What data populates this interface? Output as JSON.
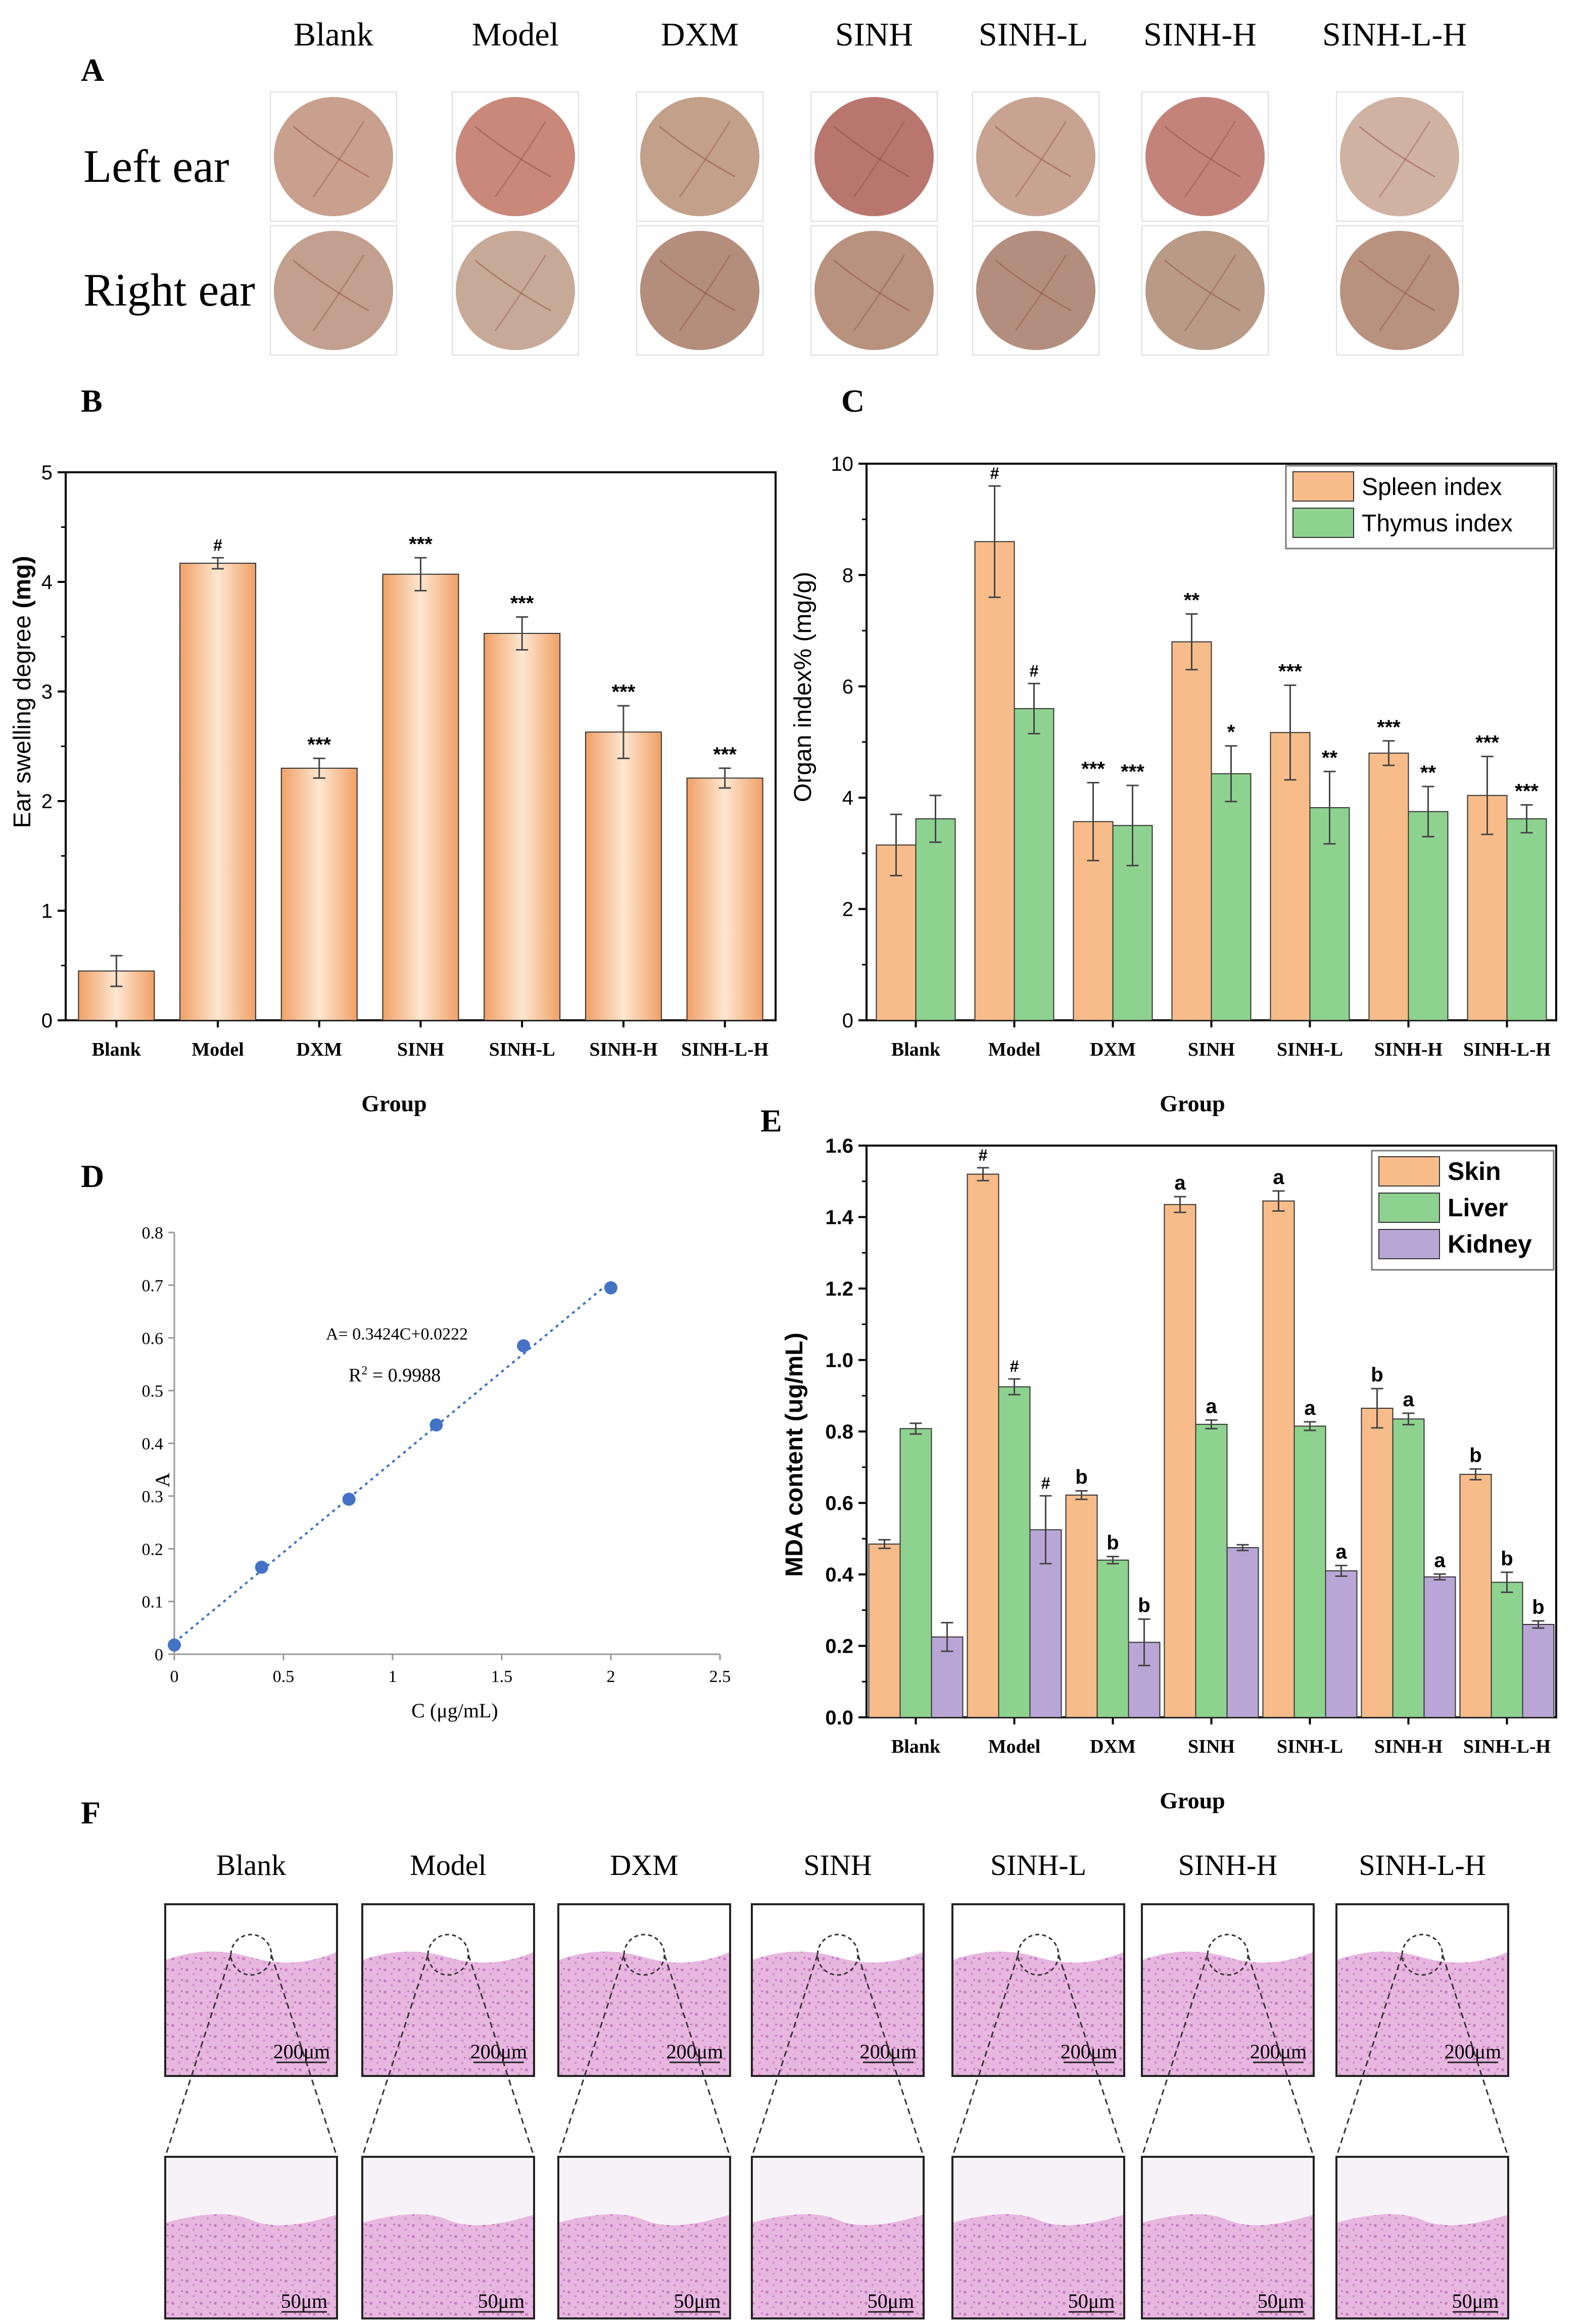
{
  "groups": [
    "Blank",
    "Model",
    "DXM",
    "SINH",
    "SINH-L",
    "SINH-H",
    "SINH-L-H"
  ],
  "panel_labels": {
    "A": "A",
    "B": "B",
    "C": "C",
    "D": "D",
    "E": "E",
    "F": "F"
  },
  "panelA": {
    "rows": [
      "Left ear",
      "Right ear"
    ],
    "left_tints": [
      "#c9a08d",
      "#c9887a",
      "#c3a08a",
      "#b9766e",
      "#c8a392",
      "#c4837a",
      "#d0b2a2"
    ],
    "right_tints": [
      "#c29f8e",
      "#c7a998",
      "#b48d7c",
      "#b8927e",
      "#b38e7e",
      "#b99a86",
      "#b9927f"
    ]
  },
  "panelF": {
    "scale_top": "200μm",
    "scale_bottom": "50μm"
  },
  "colors": {
    "orange": "#f7bc8a",
    "green": "#8ed28f",
    "purple": "#b9a6d6"
  },
  "chart_data": [
    {
      "id": "B",
      "type": "bar",
      "categories": [
        "Blank",
        "Model",
        "DXM",
        "SINH",
        "SINH-L",
        "SINH-H",
        "SINH-L-H"
      ],
      "values": [
        0.45,
        4.17,
        2.3,
        4.07,
        3.53,
        2.63,
        2.21
      ],
      "errors": [
        0.14,
        0.05,
        0.09,
        0.15,
        0.15,
        0.24,
        0.09
      ],
      "annotations": [
        "",
        "#",
        "***",
        "***",
        "***",
        "***",
        "***"
      ],
      "xlabel": "Group",
      "ylabel_main": "Ear swelling degree ",
      "ylabel_unit": "(mg)",
      "ylim": [
        0,
        5
      ],
      "yticks": [
        "0",
        "1",
        "2",
        "3",
        "4",
        "5"
      ]
    },
    {
      "id": "C",
      "type": "bar",
      "categories": [
        "Blank",
        "Model",
        "DXM",
        "SINH",
        "SINH-L",
        "SINH-H",
        "SINH-L-H"
      ],
      "series": [
        {
          "name": "Spleen index",
          "values": [
            3.15,
            8.6,
            3.57,
            6.8,
            5.17,
            4.8,
            4.04
          ],
          "errors": [
            0.55,
            1.0,
            0.7,
            0.5,
            0.85,
            0.22,
            0.7
          ],
          "annotations": [
            "",
            "#",
            "***",
            "**",
            "***",
            "***",
            "***"
          ]
        },
        {
          "name": "Thymus index",
          "values": [
            3.62,
            5.6,
            3.5,
            4.43,
            3.82,
            3.75,
            3.62
          ],
          "errors": [
            0.42,
            0.45,
            0.72,
            0.5,
            0.65,
            0.45,
            0.25
          ],
          "annotations": [
            "",
            "#",
            "***",
            "*",
            "**",
            "**",
            "***"
          ]
        }
      ],
      "xlabel": "Group",
      "ylabel": "Organ index% (mg/g)",
      "ylim": [
        0,
        10
      ],
      "yticks": [
        "0",
        "2",
        "4",
        "6",
        "8",
        "10"
      ]
    },
    {
      "id": "D",
      "type": "scatter",
      "x": [
        0,
        0.4,
        0.8,
        1.2,
        1.6,
        2.0
      ],
      "y": [
        0.0175,
        0.165,
        0.294,
        0.435,
        0.585,
        0.695
      ],
      "equation": "A= 0.3424C+0.0222",
      "r2_label": "R",
      "r2_sup": "2",
      "r2_value": " = 0.9988",
      "fit": {
        "slope": 0.3424,
        "intercept": 0.0222
      },
      "xlabel": "C (μg/mL)",
      "ylabel": "A",
      "xlim": [
        0,
        2.5
      ],
      "ylim": [
        0,
        0.8
      ],
      "xticks": [
        "0",
        "0.5",
        "1",
        "1.5",
        "2",
        "2.5"
      ],
      "yticks": [
        "0",
        "0.1",
        "0.2",
        "0.3",
        "0.4",
        "0.5",
        "0.6",
        "0.7",
        "0.8"
      ]
    },
    {
      "id": "E",
      "type": "bar",
      "categories": [
        "Blank",
        "Model",
        "DXM",
        "SINH",
        "SINH-L",
        "SINH-H",
        "SINH-L-H"
      ],
      "series": [
        {
          "name": "Skin",
          "values": [
            0.485,
            1.52,
            0.622,
            1.435,
            1.445,
            0.865,
            0.68
          ],
          "errors": [
            0.012,
            0.018,
            0.012,
            0.022,
            0.028,
            0.055,
            0.015
          ],
          "annotations": [
            "",
            "#",
            "b",
            "a",
            "a",
            "b",
            "b"
          ]
        },
        {
          "name": "Liver",
          "values": [
            0.808,
            0.925,
            0.44,
            0.82,
            0.815,
            0.835,
            0.378
          ],
          "errors": [
            0.015,
            0.022,
            0.01,
            0.012,
            0.012,
            0.016,
            0.028
          ],
          "annotations": [
            "",
            "#",
            "b",
            "a",
            "a",
            "a",
            "b"
          ]
        },
        {
          "name": "Kidney",
          "values": [
            0.225,
            0.525,
            0.21,
            0.475,
            0.41,
            0.393,
            0.26
          ],
          "errors": [
            0.04,
            0.095,
            0.065,
            0.008,
            0.015,
            0.008,
            0.01
          ],
          "annotations": [
            "",
            "#",
            "b",
            "",
            "a",
            "a",
            "b"
          ]
        }
      ],
      "xlabel": "Group",
      "ylabel": "MDA content (ug/mL)",
      "ylim": [
        0,
        1.6
      ],
      "yticks": [
        "0.0",
        "0.2",
        "0.4",
        "0.6",
        "0.8",
        "1.0",
        "1.2",
        "1.4",
        "1.6"
      ]
    }
  ]
}
